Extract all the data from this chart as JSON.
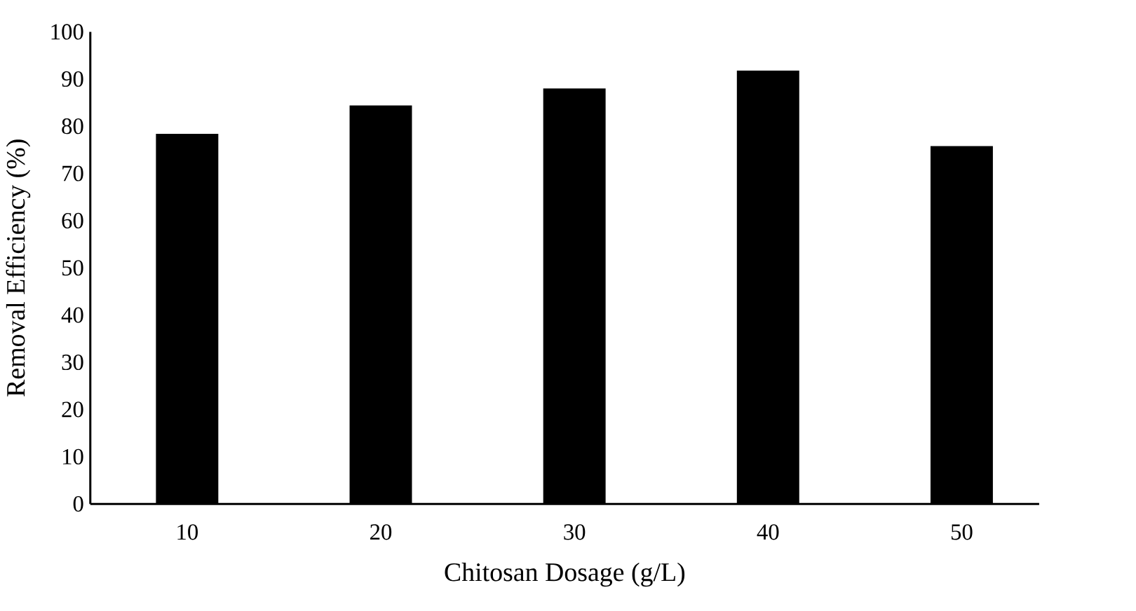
{
  "chart_data": {
    "type": "bar",
    "xlabel": "Chitosan Dosage (g/L)",
    "ylabel": "Removal Efficiency (%)",
    "categories": [
      "10",
      "20",
      "30",
      "40",
      "50"
    ],
    "values": [
      78.4,
      84.4,
      88.0,
      91.8,
      75.8
    ],
    "color": "#000000",
    "ylim": [
      0,
      100
    ],
    "yticks": [
      0,
      10,
      20,
      30,
      40,
      50,
      60,
      70,
      80,
      90,
      100
    ]
  }
}
